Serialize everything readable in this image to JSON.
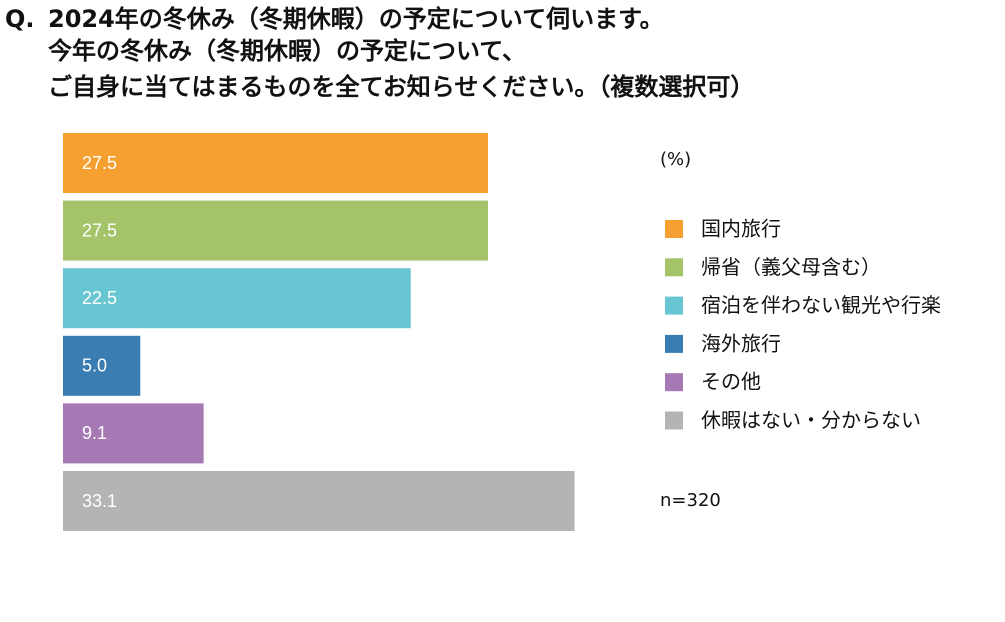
{
  "chart_data": {
    "type": "bar",
    "orientation": "horizontal",
    "question_label": "Q.",
    "title": [
      "2024年の冬休み（冬期休暇）の予定について伺います。",
      "今年の冬休み（冬期休暇）の予定について、",
      "ご自身に当てはまるものを全てお知らせください。（複数選択可）"
    ],
    "unit_label": "(%)",
    "note": "n=320",
    "categories": [
      "国内旅行",
      "帰省（義父母含む）",
      "宿泊を伴わない観光や行楽",
      "海外旅行",
      "その他",
      "休暇はない・分からない"
    ],
    "values": [
      27.5,
      27.5,
      22.5,
      5.0,
      9.1,
      33.1
    ],
    "value_labels": [
      "27.5",
      "27.5",
      "22.5",
      "5.0",
      "9.1",
      "33.1"
    ],
    "colors": [
      "#f5a031",
      "#a5c46a",
      "#68c6d3",
      "#3a7db2",
      "#a679b5",
      "#b4b4b4"
    ],
    "legend": "right"
  }
}
